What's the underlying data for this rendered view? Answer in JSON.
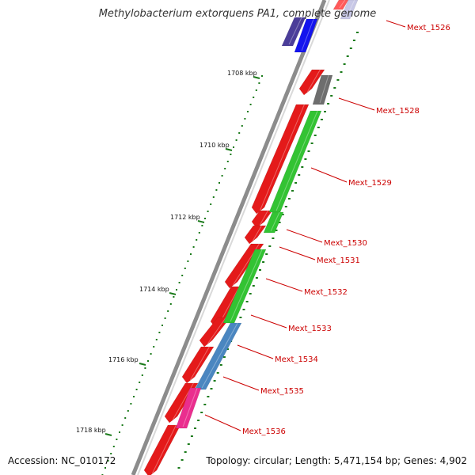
{
  "title": "Methylobacterium extorquens PA1, complete genome",
  "footer": {
    "accession": "Accession: NC_010172",
    "stats": "Topology: circular; Length: 5,471,154 bp; Genes: 4,902"
  },
  "colors": {
    "backbone": "#8c8c8c",
    "tick": "#1a7a1a",
    "label": "#cc0000"
  },
  "ticks": [
    {
      "label": "1708 kbp"
    },
    {
      "label": "1710 kbp"
    },
    {
      "label": "1712 kbp"
    },
    {
      "label": "1714 kbp"
    },
    {
      "label": "1716 kbp"
    },
    {
      "label": "1718 kbp"
    }
  ],
  "genes": [
    {
      "label": "Mext_1526",
      "color": "#e21b1b"
    },
    {
      "label": "Mext_1528",
      "color": "#666666"
    },
    {
      "label": "Mext_1529",
      "color": "#2fbf2f"
    },
    {
      "label": "Mext_1530",
      "color": "#2fbf2f"
    },
    {
      "label": "Mext_1531",
      "color": "#e21b1b"
    },
    {
      "label": "Mext_1532",
      "color": "#2fbf2f"
    },
    {
      "label": "Mext_1533",
      "color": "#e21b1b"
    },
    {
      "label": "Mext_1534",
      "color": "#4a86c0"
    },
    {
      "label": "Mext_1535",
      "color": "#4a86c0"
    },
    {
      "label": "Mext_1536",
      "color": "#ea2e8e"
    }
  ]
}
